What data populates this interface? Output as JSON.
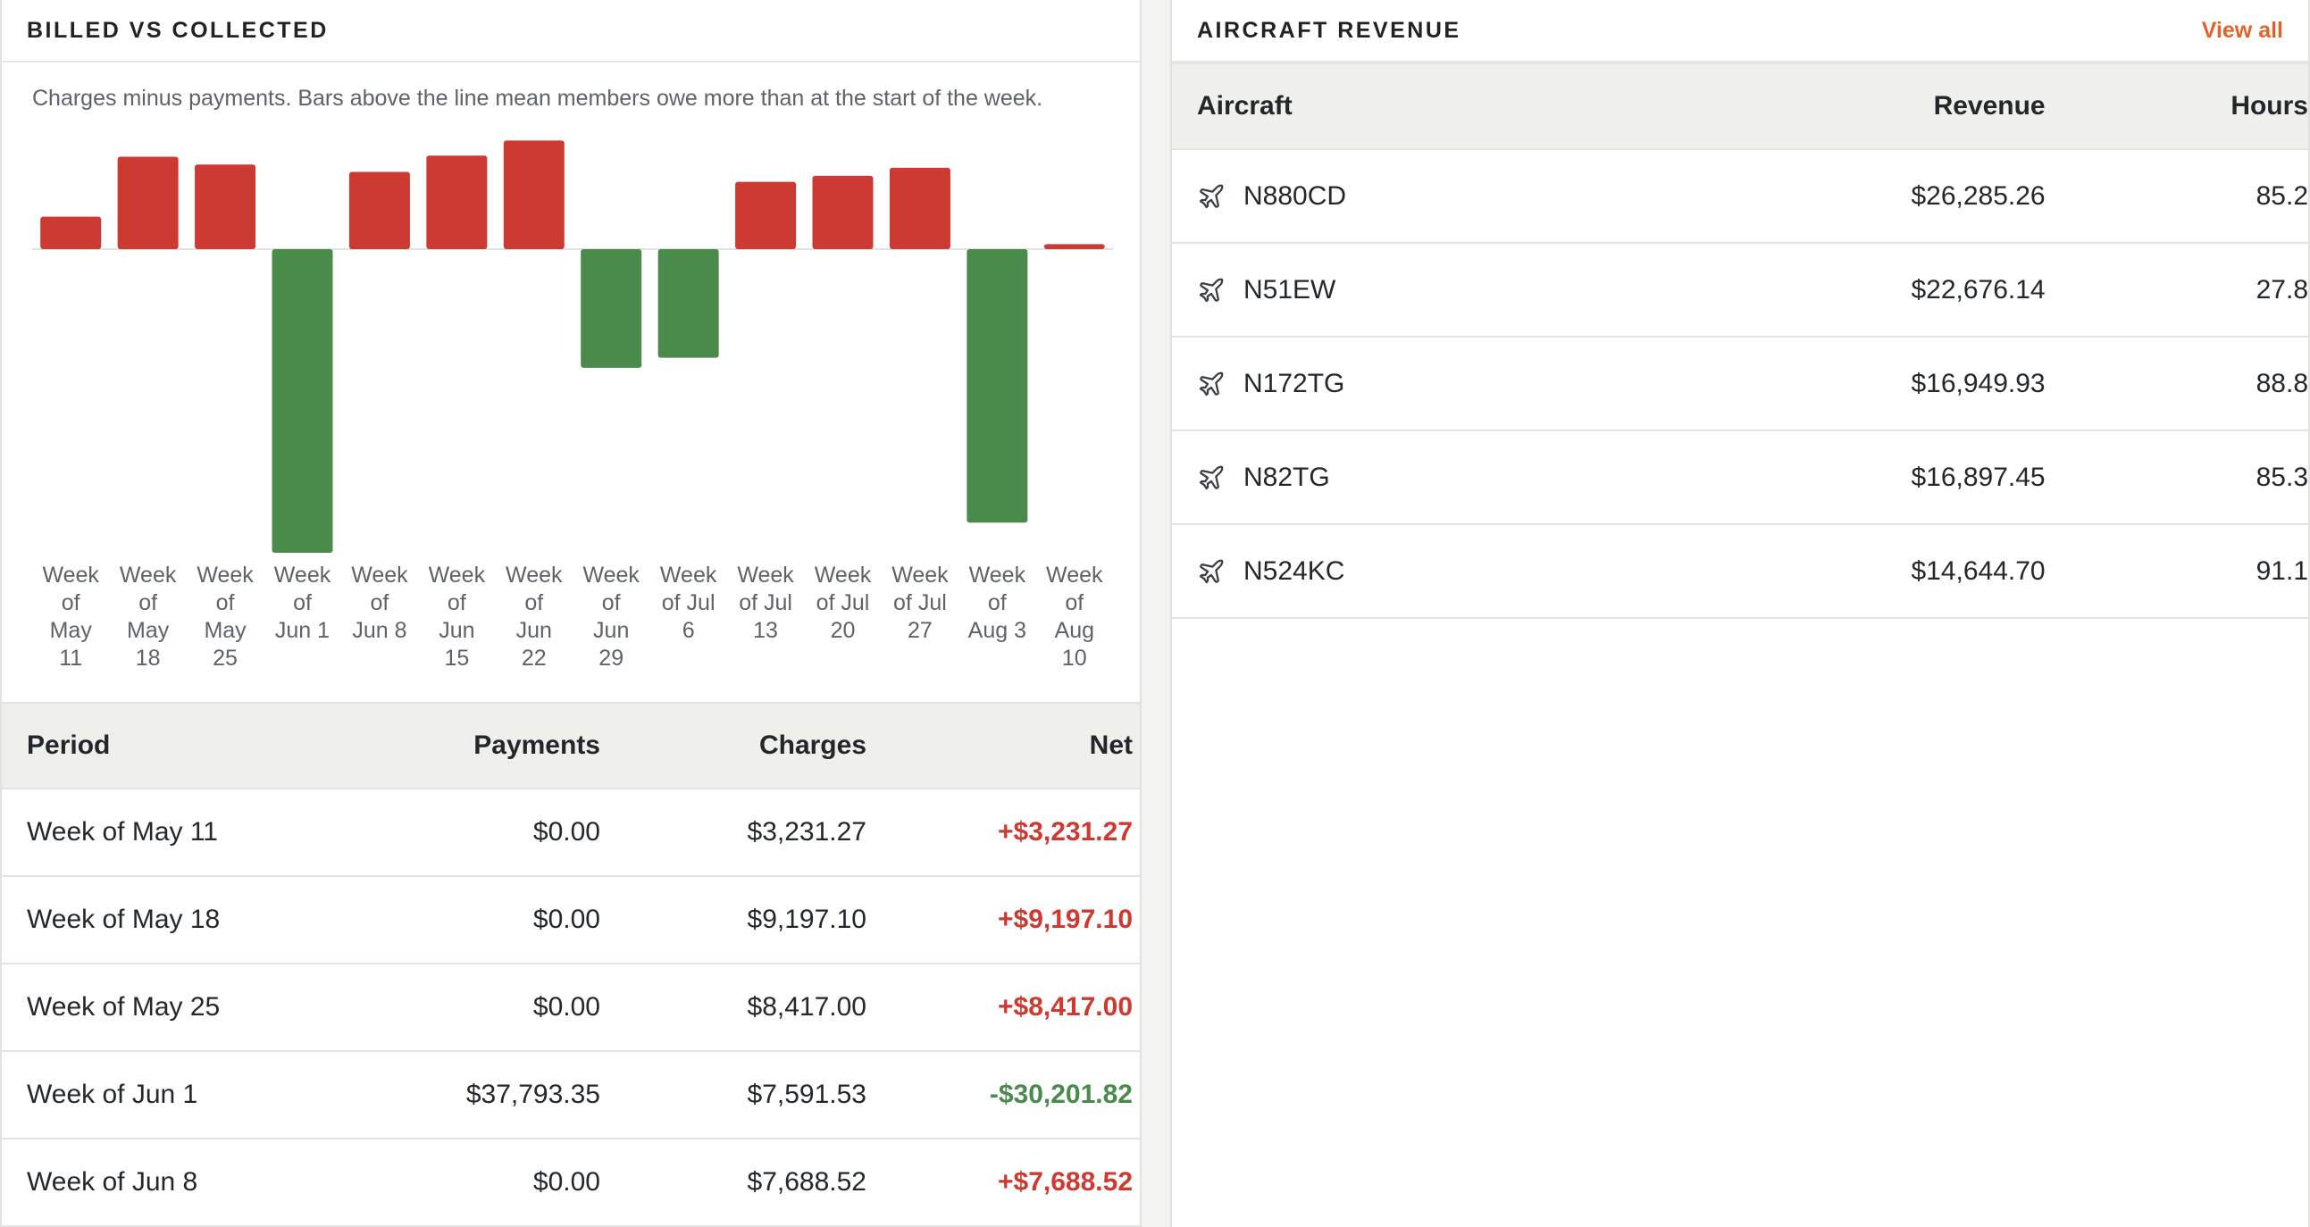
{
  "billed": {
    "title": "BILLED VS COLLECTED",
    "subtitle": "Charges minus payments. Bars above the line mean members owe more than at the start of the week.",
    "table_headers": [
      "Period",
      "Payments",
      "Charges",
      "Net"
    ],
    "rows": [
      {
        "period": "Week of May 11",
        "payments": "$0.00",
        "charges": "$3,231.27",
        "net": "+$3,231.27",
        "sign": "pos"
      },
      {
        "period": "Week of May 18",
        "payments": "$0.00",
        "charges": "$9,197.10",
        "net": "+$9,197.10",
        "sign": "pos"
      },
      {
        "period": "Week of May 25",
        "payments": "$0.00",
        "charges": "$8,417.00",
        "net": "+$8,417.00",
        "sign": "pos"
      },
      {
        "period": "Week of Jun 1",
        "payments": "$37,793.35",
        "charges": "$7,591.53",
        "net": "-$30,201.82",
        "sign": "neg"
      },
      {
        "period": "Week of Jun 8",
        "payments": "$0.00",
        "charges": "$7,688.52",
        "net": "+$7,688.52",
        "sign": "pos"
      }
    ]
  },
  "chart_data": {
    "type": "bar",
    "categories": [
      [
        "Week",
        "of",
        "May",
        "11"
      ],
      [
        "Week",
        "of",
        "May",
        "18"
      ],
      [
        "Week",
        "of",
        "May",
        "25"
      ],
      [
        "Week",
        "of",
        "Jun 1"
      ],
      [
        "Week",
        "of",
        "Jun 8"
      ],
      [
        "Week",
        "of",
        "Jun",
        "15"
      ],
      [
        "Week",
        "of",
        "Jun",
        "22"
      ],
      [
        "Week",
        "of",
        "Jun",
        "29"
      ],
      [
        "Week",
        "of Jul",
        "6"
      ],
      [
        "Week",
        "of Jul",
        "13"
      ],
      [
        "Week",
        "of Jul",
        "20"
      ],
      [
        "Week",
        "of Jul",
        "27"
      ],
      [
        "Week",
        "of",
        "Aug 3"
      ],
      [
        "Week",
        "of",
        "Aug",
        "10"
      ]
    ],
    "values": [
      3231.27,
      9197.1,
      8417.0,
      -30201.82,
      7688.52,
      9300,
      10800,
      -11800,
      -10800,
      6700,
      7300,
      8100,
      -27200,
      500
    ],
    "colors": {
      "positive": "#cc3a31",
      "negative": "#4a8a4b",
      "zero_line": "#e2e2df"
    },
    "grid": false
  },
  "aircraft": {
    "title": "AIRCRAFT REVENUE",
    "view_all": "View all",
    "table_headers": [
      "Aircraft",
      "Revenue",
      "Hours"
    ],
    "icon": "plane-icon",
    "rows": [
      {
        "tail": "N880CD",
        "revenue": "$26,285.26",
        "hours": "85.2"
      },
      {
        "tail": "N51EW",
        "revenue": "$22,676.14",
        "hours": "27.8"
      },
      {
        "tail": "N172TG",
        "revenue": "$16,949.93",
        "hours": "88.8"
      },
      {
        "tail": "N82TG",
        "revenue": "$16,897.45",
        "hours": "85.3"
      },
      {
        "tail": "N524KC",
        "revenue": "$14,644.70",
        "hours": "91.1"
      }
    ]
  }
}
